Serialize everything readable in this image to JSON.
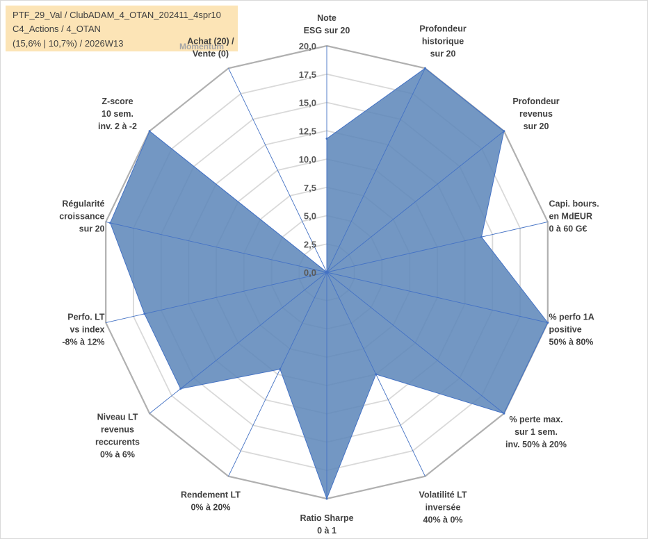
{
  "info": {
    "line1": "PTF_29_Val / ClubADAM_4_OTAN_202411_4spr10",
    "line2": "C4_Actions / 4_OTAN",
    "line3": "(15,6% | 10,7%) / 2026W13",
    "momentum": "Momentum"
  },
  "chart_data": {
    "type": "radar",
    "rmin": 0,
    "rmax": 20,
    "ticks": [
      "0,0",
      "2,5",
      "5,0",
      "7,5",
      "10,0",
      "12,5",
      "15,0",
      "17,5",
      "20,0"
    ],
    "axes": [
      [
        "Note",
        "ESG sur 20"
      ],
      [
        "Profondeur",
        "historique",
        "sur 20"
      ],
      [
        "Profondeur",
        "revenus",
        "sur 20"
      ],
      [
        "Capi. bours.",
        "en MdEUR",
        "0 à 60 G€"
      ],
      [
        "% perfo 1A",
        "positive",
        "50% à 80%"
      ],
      [
        "% perte max.",
        "sur 1 sem.",
        "inv. 50% à 20%"
      ],
      [
        "Volatilité LT",
        "inversée",
        "40% à 0%"
      ],
      [
        "Ratio Sharpe",
        "0 à 1"
      ],
      [
        "Rendement LT",
        "0% à 20%"
      ],
      [
        "Niveau LT",
        "revenus",
        "reccurents",
        "0% à 6%"
      ],
      [
        "Perfo. LT",
        "vs index",
        "-8% à 12%"
      ],
      [
        "Régularité",
        "croissance",
        "sur 20"
      ],
      [
        "Z-score",
        "10 sem.",
        "inv. 2 à -2"
      ],
      [
        "Achat (20) /",
        "Vente (0)"
      ]
    ],
    "values": [
      11.8,
      20,
      20,
      14,
      20,
      20,
      10,
      20,
      9.5,
      16.5,
      16.5,
      19.6,
      20,
      0
    ],
    "colors": {
      "fill": "#5b85b8",
      "line": "#4472c4",
      "grid": "#c0c0c0",
      "spoke": "#4472c4"
    },
    "grid": true,
    "legend": "none"
  }
}
